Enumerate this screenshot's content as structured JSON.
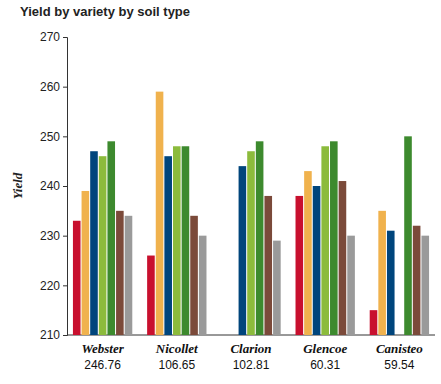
{
  "chart_data": {
    "type": "bar",
    "title": "Yield by variety by soil type",
    "y_label": "Yield",
    "categories": [
      "Webster",
      "Nicollet",
      "Clarion",
      "Glencoe",
      "Canisteo"
    ],
    "category_values": [
      246.76,
      106.65,
      102.81,
      60.31,
      59.54
    ],
    "series": [
      {
        "color": "#c8102e",
        "values": [
          233,
          226,
          null,
          238,
          215
        ]
      },
      {
        "color": "#f0b24d",
        "values": [
          239,
          259,
          null,
          243,
          235
        ]
      },
      {
        "color": "#00457c",
        "values": [
          247,
          246,
          244,
          240,
          231
        ]
      },
      {
        "color": "#8cbb3c",
        "values": [
          246,
          248,
          247,
          248,
          null
        ]
      },
      {
        "color": "#3d8a2e",
        "values": [
          249,
          248,
          249,
          249,
          250
        ]
      },
      {
        "color": "#7b4a3a",
        "values": [
          235,
          234,
          238,
          241,
          232
        ]
      },
      {
        "color": "#9a9a9a",
        "values": [
          234,
          230,
          229,
          230,
          230
        ]
      }
    ],
    "ylim": [
      210,
      270
    ],
    "yticks": [
      210,
      220,
      230,
      240,
      250,
      260,
      270
    ],
    "grid": false
  }
}
